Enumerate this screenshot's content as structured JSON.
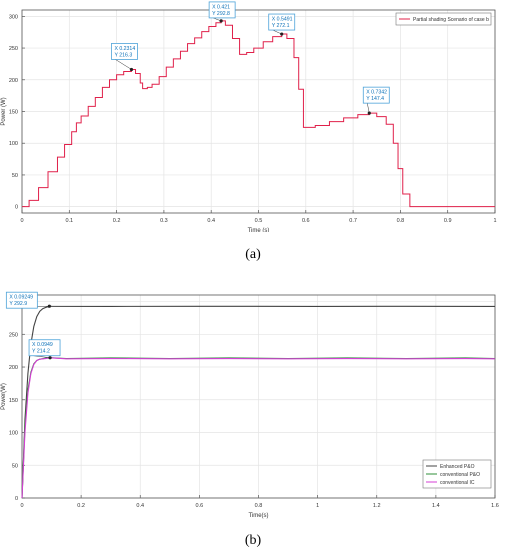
{
  "captions": {
    "a": "(a)",
    "b": "(b)"
  },
  "chart_data": [
    {
      "type": "line",
      "id": "a",
      "title": "",
      "xlabel": "Time (s)",
      "ylabel": "Power (W)",
      "xlim": [
        0,
        1
      ],
      "ylim": [
        -10,
        310
      ],
      "xticks": [
        0,
        0.1,
        0.2,
        0.3,
        0.4,
        0.5,
        0.6,
        0.7,
        0.8,
        0.9,
        1
      ],
      "yticks": [
        0,
        50,
        100,
        150,
        200,
        250,
        300
      ],
      "grid": true,
      "legend_position": "top-right",
      "series": [
        {
          "name": "Partial shading Scenario of case b",
          "color": "#e0204a",
          "x": [
            0,
            0.015,
            0.035,
            0.055,
            0.075,
            0.09,
            0.105,
            0.115,
            0.125,
            0.14,
            0.155,
            0.17,
            0.185,
            0.2,
            0.215,
            0.2314,
            0.24,
            0.25,
            0.255,
            0.265,
            0.275,
            0.29,
            0.305,
            0.32,
            0.335,
            0.35,
            0.365,
            0.38,
            0.395,
            0.41,
            0.421,
            0.43,
            0.445,
            0.46,
            0.475,
            0.49,
            0.51,
            0.53,
            0.5491,
            0.56,
            0.575,
            0.585,
            0.595,
            0.62,
            0.65,
            0.68,
            0.71,
            0.7342,
            0.75,
            0.77,
            0.785,
            0.795,
            0.805,
            0.82,
            0.9,
            1.0
          ],
          "y": [
            0,
            10,
            30,
            55,
            78,
            98,
            118,
            132,
            143,
            158,
            172,
            188,
            200,
            208,
            213,
            216.3,
            210,
            195,
            186,
            188,
            193,
            205,
            220,
            233,
            245,
            257,
            266,
            276,
            284,
            290,
            292.8,
            286,
            265,
            240,
            243,
            250,
            260,
            268,
            272.1,
            265,
            235,
            185,
            125,
            128,
            134,
            140,
            145,
            147.4,
            142,
            130,
            100,
            60,
            20,
            0,
            0,
            0
          ]
        }
      ],
      "annotations": [
        {
          "x_label": "X 0.2314",
          "y_label": "Y 216.3",
          "x": 0.2314,
          "y": 216.3
        },
        {
          "x_label": "X 0.421",
          "y_label": "Y 292.8",
          "x": 0.421,
          "y": 292.8
        },
        {
          "x_label": "X 0.5491",
          "y_label": "Y 272.1",
          "x": 0.5491,
          "y": 272.1
        },
        {
          "x_label": "X 0.7342",
          "y_label": "Y 147.4",
          "x": 0.7342,
          "y": 147.4
        }
      ]
    },
    {
      "type": "line",
      "id": "b",
      "title": "",
      "xlabel": "Time(s)",
      "ylabel": "Power(W)",
      "xlim": [
        0,
        1.6
      ],
      "ylim": [
        0,
        310
      ],
      "xticks": [
        0,
        0.2,
        0.4,
        0.6,
        0.8,
        1,
        1.2,
        1.4,
        1.6
      ],
      "yticks": [
        0,
        50,
        100,
        150,
        200,
        250,
        300
      ],
      "grid": true,
      "legend_position": "bottom-right",
      "series": [
        {
          "name": "Enhanced P&O",
          "color": "#444444",
          "x": [
            0,
            0.005,
            0.01,
            0.02,
            0.03,
            0.04,
            0.05,
            0.06,
            0.07,
            0.08,
            0.09249,
            0.1,
            0.3,
            0.6,
            1.0,
            1.3,
            1.6
          ],
          "y": [
            0,
            60,
            120,
            190,
            235,
            262,
            277,
            285,
            289,
            291,
            292.9,
            292.8,
            292.6,
            292.7,
            292.6,
            292.7,
            292.6
          ]
        },
        {
          "name": "conventional P&O",
          "color": "#2f8f3a",
          "x": [
            0,
            0.005,
            0.01,
            0.02,
            0.03,
            0.04,
            0.05,
            0.06,
            0.08,
            0.0949,
            0.15,
            0.3,
            0.5,
            0.7,
            0.9,
            1.1,
            1.3,
            1.5,
            1.6
          ],
          "y": [
            0,
            55,
            110,
            165,
            192,
            205,
            210,
            212,
            213.5,
            214.2,
            213,
            214,
            213,
            214,
            213,
            214,
            213,
            214,
            213
          ]
        },
        {
          "name": "conventional IC",
          "color": "#d43fd4",
          "x": [
            0,
            0.005,
            0.01,
            0.02,
            0.03,
            0.04,
            0.05,
            0.06,
            0.08,
            0.0949,
            0.15,
            0.3,
            0.5,
            0.7,
            0.9,
            1.1,
            1.3,
            1.5,
            1.6
          ],
          "y": [
            0,
            50,
            100,
            160,
            190,
            204,
            210,
            212,
            213,
            214,
            212.5,
            213,
            212.5,
            213,
            212.5,
            213,
            212.5,
            213,
            212.5
          ]
        }
      ],
      "annotations": [
        {
          "x_label": "X 0.09249",
          "y_label": "Y 292.9",
          "x": 0.09249,
          "y": 292.9
        },
        {
          "x_label": "X 0.0949",
          "y_label": "Y 214.2",
          "x": 0.0949,
          "y": 214.2
        }
      ]
    }
  ]
}
